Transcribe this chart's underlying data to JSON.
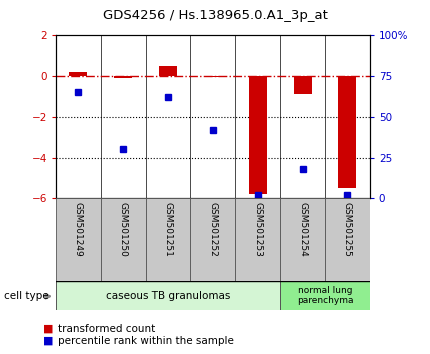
{
  "title": "GDS4256 / Hs.138965.0.A1_3p_at",
  "samples": [
    "GSM501249",
    "GSM501250",
    "GSM501251",
    "GSM501252",
    "GSM501253",
    "GSM501254",
    "GSM501255"
  ],
  "transformed_count": [
    0.2,
    -0.1,
    0.5,
    -0.05,
    -5.8,
    -0.9,
    -5.5
  ],
  "percentile_rank": [
    65,
    30,
    62,
    42,
    2,
    18,
    2
  ],
  "ylim_left": [
    -6,
    2
  ],
  "ylim_right": [
    0,
    100
  ],
  "yticks_left": [
    -6,
    -4,
    -2,
    0,
    2
  ],
  "yticks_right": [
    0,
    25,
    50,
    75,
    100
  ],
  "ytick_labels_right": [
    "0",
    "25",
    "50",
    "75",
    "100%"
  ],
  "bar_color": "#cc0000",
  "dot_color": "#0000cc",
  "hline_color": "#cc0000",
  "dotline_color": "#000000",
  "group1_label": "caseous TB granulomas",
  "group2_label": "normal lung\nparenchyma",
  "group1_color": "#d4f5d4",
  "group2_color": "#90ee90",
  "cell_type_label": "cell type",
  "legend_bar_label": "transformed count",
  "legend_dot_label": "percentile rank within the sample",
  "tick_label_color_left": "#cc0000",
  "tick_label_color_right": "#0000cc",
  "bar_width": 0.4,
  "sample_box_color": "#c8c8c8"
}
